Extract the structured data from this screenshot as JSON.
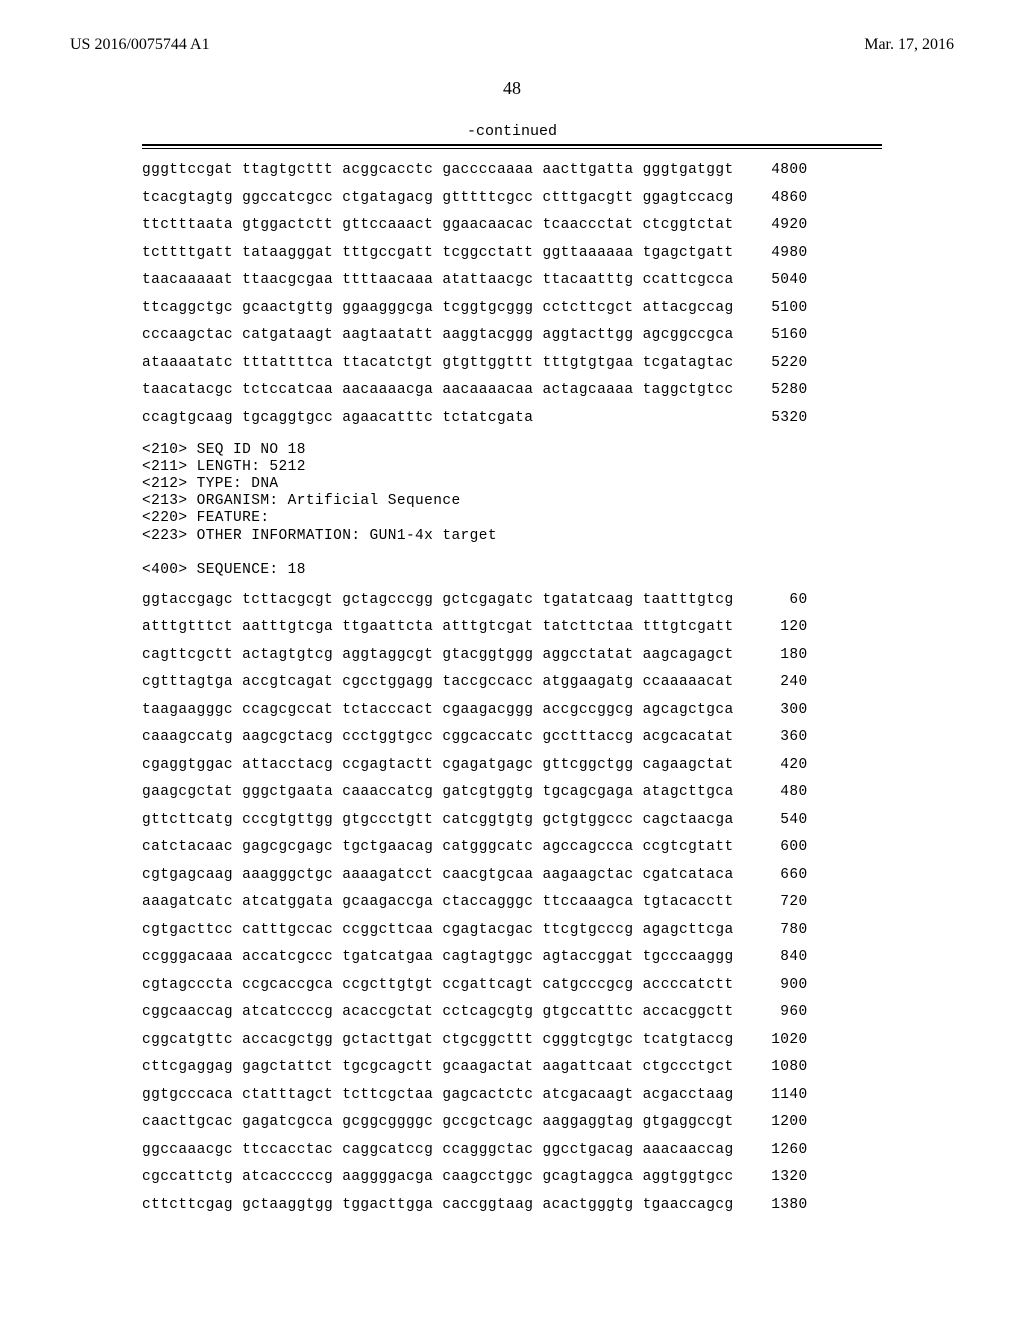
{
  "header": {
    "publication_number": "US 2016/0075744 A1",
    "issue_date": "Mar. 17, 2016",
    "page_number": "48",
    "continued_label": "-continued"
  },
  "seq_block_1": {
    "rows": [
      {
        "blocks": "gggttccgat ttagtgcttt acggcacctc gaccccaaaa aacttgatta gggtgatggt",
        "num": "4800"
      },
      {
        "blocks": "tcacgtagtg ggccatcgcc ctgatagacg gtttttcgcc ctttgacgtt ggagtccacg",
        "num": "4860"
      },
      {
        "blocks": "ttctttaata gtggactctt gttccaaact ggaacaacac tcaaccctat ctcggtctat",
        "num": "4920"
      },
      {
        "blocks": "tcttttgatt tataagggat tttgccgatt tcggcctatt ggttaaaaaa tgagctgatt",
        "num": "4980"
      },
      {
        "blocks": "taacaaaaat ttaacgcgaa ttttaacaaa atattaacgc ttacaatttg ccattcgcca",
        "num": "5040"
      },
      {
        "blocks": "ttcaggctgc gcaactgttg ggaagggcga tcggtgcggg cctcttcgct attacgccag",
        "num": "5100"
      },
      {
        "blocks": "cccaagctac catgataagt aagtaatatt aaggtacggg aggtacttgg agcggccgca",
        "num": "5160"
      },
      {
        "blocks": "ataaaatatc tttattttca ttacatctgt gtgttggttt tttgtgtgaa tcgatagtac",
        "num": "5220"
      },
      {
        "blocks": "taacatacgc tctccatcaa aacaaaacga aacaaaacaa actagcaaaa taggctgtcc",
        "num": "5280"
      },
      {
        "blocks": "ccagtgcaag tgcaggtgcc agaacatttc tctatcgata",
        "num": "5320"
      }
    ]
  },
  "meta_block": "<210> SEQ ID NO 18\n<211> LENGTH: 5212\n<212> TYPE: DNA\n<213> ORGANISM: Artificial Sequence\n<220> FEATURE:\n<223> OTHER INFORMATION: GUN1-4x target\n\n<400> SEQUENCE: 18",
  "seq_block_2": {
    "rows": [
      {
        "blocks": "ggtaccgagc tcttacgcgt gctagcccgg gctcgagatc tgatatcaag taatttgtcg",
        "num": "60"
      },
      {
        "blocks": "atttgtttct aatttgtcga ttgaattcta atttgtcgat tatcttctaa tttgtcgatt",
        "num": "120"
      },
      {
        "blocks": "cagttcgctt actagtgtcg aggtaggcgt gtacggtggg aggcctatat aagcagagct",
        "num": "180"
      },
      {
        "blocks": "cgtttagtga accgtcagat cgcctggagg taccgccacc atggaagatg ccaaaaacat",
        "num": "240"
      },
      {
        "blocks": "taagaagggc ccagcgccat tctacccact cgaagacggg accgccggcg agcagctgca",
        "num": "300"
      },
      {
        "blocks": "caaagccatg aagcgctacg ccctggtgcc cggcaccatc gcctttaccg acgcacatat",
        "num": "360"
      },
      {
        "blocks": "cgaggtggac attacctacg ccgagtactt cgagatgagc gttcggctgg cagaagctat",
        "num": "420"
      },
      {
        "blocks": "gaagcgctat gggctgaata caaaccatcg gatcgtggtg tgcagcgaga atagcttgca",
        "num": "480"
      },
      {
        "blocks": "gttcttcatg cccgtgttgg gtgccctgtt catcggtgtg gctgtggccc cagctaacga",
        "num": "540"
      },
      {
        "blocks": "catctacaac gagcgcgagc tgctgaacag catgggcatc agccagccca ccgtcgtatt",
        "num": "600"
      },
      {
        "blocks": "cgtgagcaag aaagggctgc aaaagatcct caacgtgcaa aagaagctac cgatcataca",
        "num": "660"
      },
      {
        "blocks": "aaagatcatc atcatggata gcaagaccga ctaccagggc ttccaaagca tgtacacctt",
        "num": "720"
      },
      {
        "blocks": "cgtgacttcc catttgccac ccggcttcaa cgagtacgac ttcgtgcccg agagcttcga",
        "num": "780"
      },
      {
        "blocks": "ccgggacaaa accatcgccc tgatcatgaa cagtagtggc agtaccggat tgcccaaggg",
        "num": "840"
      },
      {
        "blocks": "cgtagcccta ccgcaccgca ccgcttgtgt ccgattcagt catgcccgcg accccatctt",
        "num": "900"
      },
      {
        "blocks": "cggcaaccag atcatccccg acaccgctat cctcagcgtg gtgccatttc accacggctt",
        "num": "960"
      },
      {
        "blocks": "cggcatgttc accacgctgg gctacttgat ctgcggcttt cgggtcgtgc tcatgtaccg",
        "num": "1020"
      },
      {
        "blocks": "cttcgaggag gagctattct tgcgcagctt gcaagactat aagattcaat ctgccctgct",
        "num": "1080"
      },
      {
        "blocks": "ggtgcccaca ctatttagct tcttcgctaa gagcactctc atcgacaagt acgacctaag",
        "num": "1140"
      },
      {
        "blocks": "caacttgcac gagatcgcca gcggcggggc gccgctcagc aaggaggtag gtgaggccgt",
        "num": "1200"
      },
      {
        "blocks": "ggccaaacgc ttccacctac caggcatccg ccagggctac ggcctgacag aaacaaccag",
        "num": "1260"
      },
      {
        "blocks": "cgccattctg atcacccccg aaggggacga caagcctggc gcagtaggca aggtggtgcc",
        "num": "1320"
      },
      {
        "blocks": "cttcttcgag gctaaggtgg tggacttgga caccggtaag acactgggtg tgaaccagcg",
        "num": "1380"
      }
    ]
  }
}
